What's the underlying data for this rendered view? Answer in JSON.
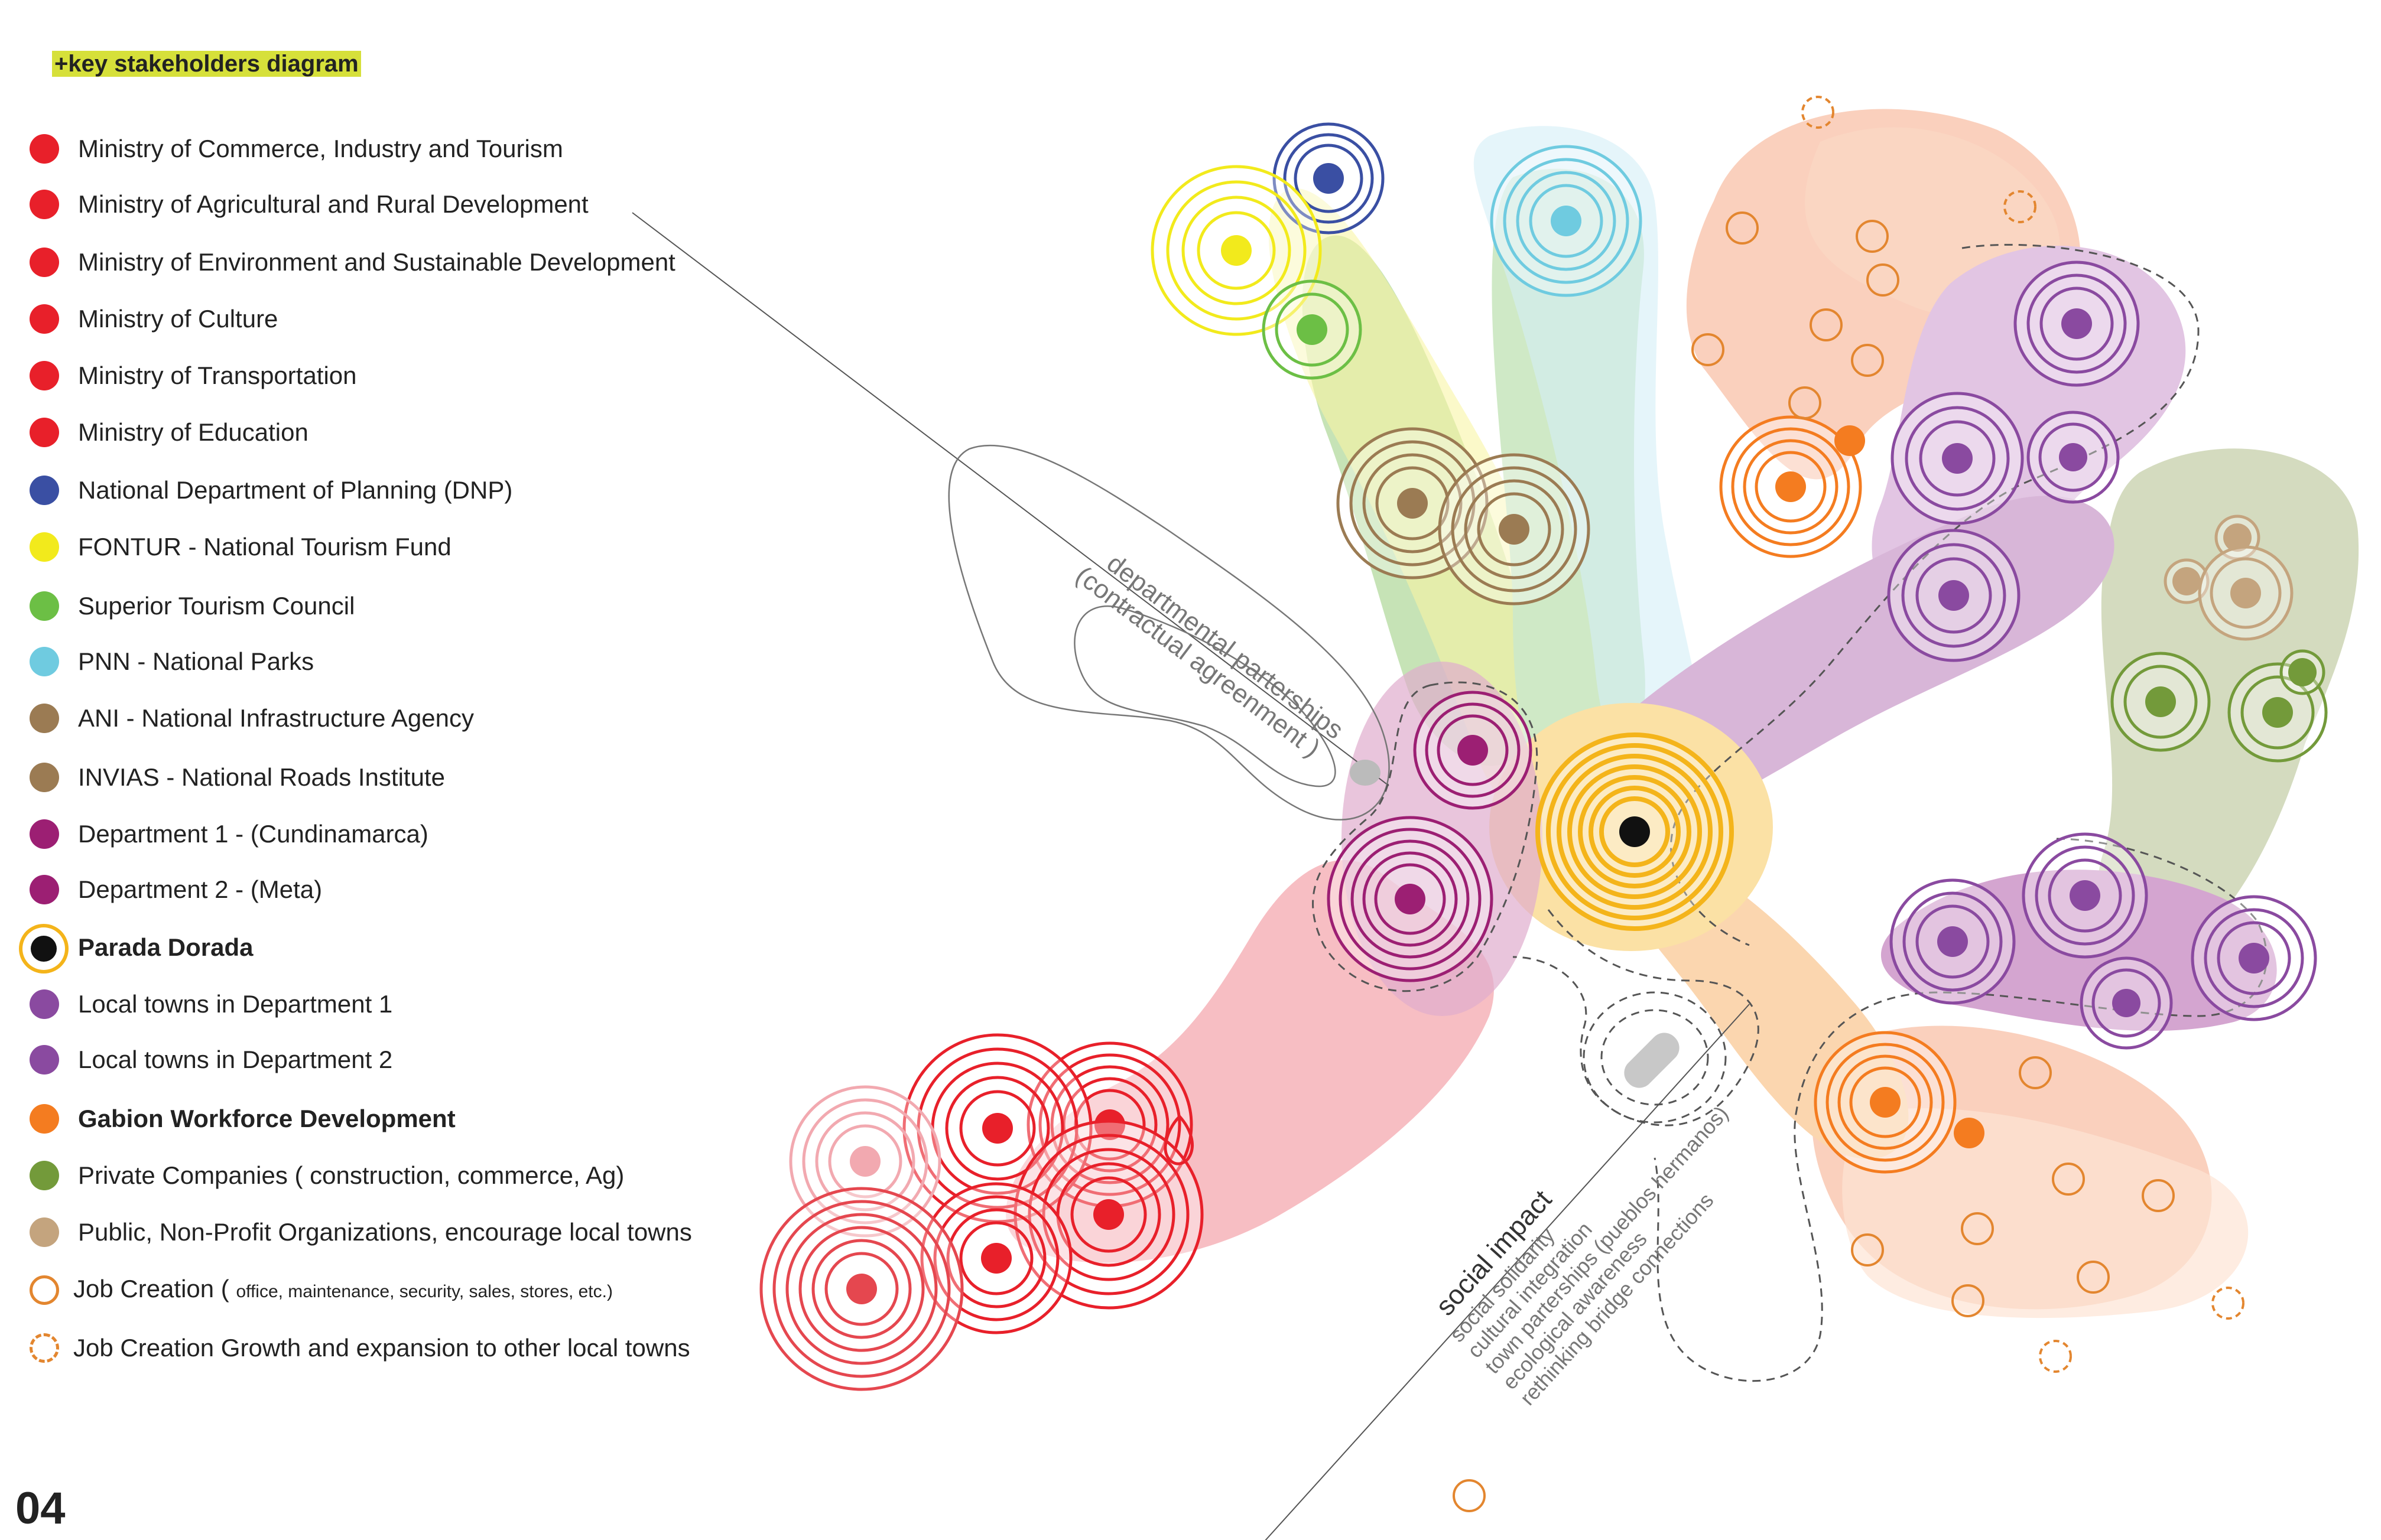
{
  "title": "+key stakeholders diagram",
  "page_number": "04",
  "legend": [
    {
      "label": "Ministry of Commerce, Industry and Tourism",
      "color": "#e8202a",
      "style": "dot"
    },
    {
      "label": "Ministry of Agricultural and Rural Development",
      "color": "#e8202a",
      "style": "dot"
    },
    {
      "label": "Ministry of Environment and Sustainable Development",
      "color": "#e8202a",
      "style": "dot"
    },
    {
      "label": "Ministry of Culture",
      "color": "#e8202a",
      "style": "dot"
    },
    {
      "label": "Ministry of Transportation",
      "color": "#e8202a",
      "style": "dot"
    },
    {
      "label": "Ministry of Education",
      "color": "#e8202a",
      "style": "dot"
    },
    {
      "label": "National Department of Planning (DNP)",
      "color": "#3a4fa3",
      "style": "dot"
    },
    {
      "label": "FONTUR - National Tourism Fund",
      "color": "#f2ea1c",
      "style": "dot"
    },
    {
      "label": "Superior Tourism Council",
      "color": "#6cbf45",
      "style": "dot"
    },
    {
      "label": "PNN - National Parks",
      "color": "#6fcbe0",
      "style": "dot"
    },
    {
      "label": "ANI - National Infrastructure Agency",
      "color": "#9b7b53",
      "style": "dot"
    },
    {
      "label": "INVIAS - National Roads Institute",
      "color": "#9b7b53",
      "style": "dot"
    },
    {
      "label": "Department 1 - (Cundinamarca)",
      "color": "#9c1f73",
      "style": "dot"
    },
    {
      "label": "Department 2 - (Meta)",
      "color": "#9c1f73",
      "style": "dot"
    },
    {
      "label": "Parada Dorada",
      "color": "#111111",
      "style": "ring-dot",
      "ring_color": "#f4b41a",
      "bold": true
    },
    {
      "label": "Local towns in Department 1",
      "color": "#8a4aa0",
      "style": "dot"
    },
    {
      "label": "Local towns in Department 2",
      "color": "#8a4aa0",
      "style": "dot"
    },
    {
      "label": "Gabion Workforce Development",
      "color": "#f47c20",
      "style": "dot",
      "bold": true
    },
    {
      "label": "Private Companies ( construction, commerce, Ag)",
      "color": "#739a3a",
      "style": "dot"
    },
    {
      "label": "Public, Non-Profit Organizations, encourage local towns",
      "color": "#c4a47e",
      "style": "dot"
    },
    {
      "label": "Job Creation (",
      "sub": "office, maintenance, security, sales, stores, etc.)",
      "color": "#e3862f",
      "style": "ring"
    },
    {
      "label": "Job Creation Growth and expansion to other local towns",
      "color": "#e3862f",
      "style": "dashed-ring"
    }
  ],
  "annotations": {
    "partnership_title": "departmental parterships",
    "partnership_sub": "(contractual agreenment )",
    "impact_title": "social impact",
    "impact_items": [
      "social solidarity",
      "cultural integration",
      "town parterships (pueblos hermanos)",
      "ecological awareness",
      "rethinking bridge connections"
    ]
  }
}
